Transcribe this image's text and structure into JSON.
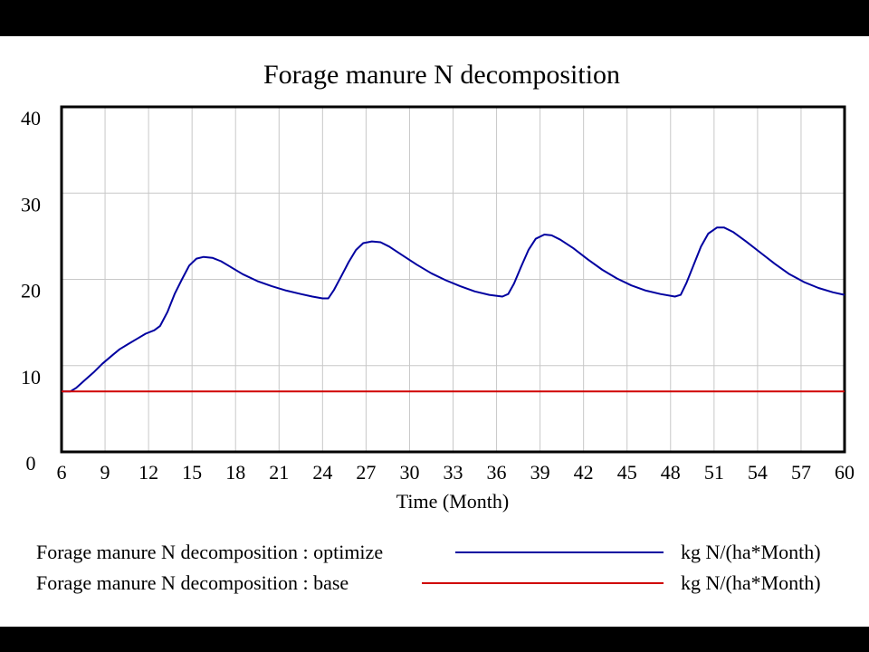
{
  "chart_data": {
    "type": "line",
    "title": "Forage manure N decomposition",
    "xlabel": "Time (Month)",
    "ylabel": "",
    "xlim": [
      6,
      60
    ],
    "ylim": [
      0,
      40
    ],
    "x_ticks": [
      "6",
      "9",
      "12",
      "15",
      "18",
      "21",
      "24",
      "27",
      "30",
      "33",
      "36",
      "39",
      "42",
      "45",
      "48",
      "51",
      "54",
      "57",
      "60"
    ],
    "y_ticks": [
      "40",
      "30",
      "20",
      "10",
      "0"
    ],
    "grid": true,
    "legend_position": "bottom",
    "series": [
      {
        "name": "Forage manure N decomposition : optimize",
        "units": "kg N/(ha*Month)",
        "color": "#0000a0",
        "points": [
          [
            6,
            7
          ],
          [
            6.6,
            7
          ],
          [
            7,
            7.4
          ],
          [
            7.6,
            8.3
          ],
          [
            8.2,
            9.2
          ],
          [
            8.8,
            10.2
          ],
          [
            9.5,
            11.2
          ],
          [
            10,
            11.9
          ],
          [
            10.6,
            12.5
          ],
          [
            11.2,
            13.1
          ],
          [
            11.8,
            13.7
          ],
          [
            12.4,
            14.1
          ],
          [
            12.8,
            14.6
          ],
          [
            13.3,
            16.2
          ],
          [
            13.8,
            18.3
          ],
          [
            14.3,
            20
          ],
          [
            14.8,
            21.6
          ],
          [
            15.3,
            22.4
          ],
          [
            15.8,
            22.6
          ],
          [
            16.4,
            22.5
          ],
          [
            17,
            22.1
          ],
          [
            17.6,
            21.5
          ],
          [
            18.5,
            20.6
          ],
          [
            19.5,
            19.8
          ],
          [
            20.5,
            19.2
          ],
          [
            21.5,
            18.7
          ],
          [
            22.5,
            18.3
          ],
          [
            23.3,
            18
          ],
          [
            24,
            17.8
          ],
          [
            24.4,
            17.8
          ],
          [
            24.8,
            18.8
          ],
          [
            25.3,
            20.4
          ],
          [
            25.8,
            22
          ],
          [
            26.3,
            23.4
          ],
          [
            26.8,
            24.2
          ],
          [
            27.4,
            24.4
          ],
          [
            28,
            24.3
          ],
          [
            28.6,
            23.8
          ],
          [
            29.5,
            22.8
          ],
          [
            30.5,
            21.7
          ],
          [
            31.5,
            20.7
          ],
          [
            32.5,
            19.9
          ],
          [
            33.5,
            19.2
          ],
          [
            34.5,
            18.6
          ],
          [
            35.5,
            18.2
          ],
          [
            36.4,
            18
          ],
          [
            36.8,
            18.3
          ],
          [
            37.2,
            19.5
          ],
          [
            37.7,
            21.5
          ],
          [
            38.2,
            23.4
          ],
          [
            38.7,
            24.7
          ],
          [
            39.3,
            25.2
          ],
          [
            39.8,
            25.1
          ],
          [
            40.4,
            24.6
          ],
          [
            41.3,
            23.6
          ],
          [
            42.3,
            22.3
          ],
          [
            43.3,
            21.1
          ],
          [
            44.3,
            20.1
          ],
          [
            45.3,
            19.3
          ],
          [
            46.3,
            18.7
          ],
          [
            47.3,
            18.3
          ],
          [
            48.3,
            18
          ],
          [
            48.7,
            18.2
          ],
          [
            49.1,
            19.6
          ],
          [
            49.6,
            21.7
          ],
          [
            50.1,
            23.8
          ],
          [
            50.6,
            25.3
          ],
          [
            51.2,
            26
          ],
          [
            51.7,
            26
          ],
          [
            52.3,
            25.5
          ],
          [
            53.2,
            24.4
          ],
          [
            54.2,
            23.1
          ],
          [
            55.2,
            21.8
          ],
          [
            56.2,
            20.6
          ],
          [
            57.2,
            19.7
          ],
          [
            58.2,
            19
          ],
          [
            59.2,
            18.5
          ],
          [
            60,
            18.2
          ]
        ]
      },
      {
        "name": "Forage manure N decomposition : base",
        "units": "kg N/(ha*Month)",
        "color": "#d00000",
        "points": [
          [
            6,
            7
          ],
          [
            60,
            7
          ]
        ]
      }
    ]
  }
}
